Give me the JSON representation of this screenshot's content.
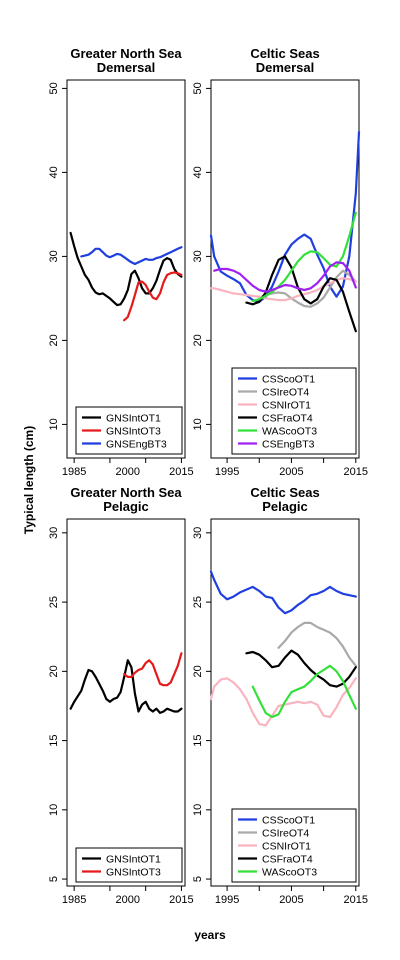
{
  "figure": {
    "ylabel": "Typical length (cm)",
    "xlabel": "years"
  },
  "chart_data": [
    {
      "type": "line",
      "title_line1": "Greater North Sea",
      "title_line2": "Demersal",
      "xlim": [
        1983,
        2016
      ],
      "ylim": [
        6,
        51
      ],
      "yticks": [
        10,
        20,
        30,
        40,
        50
      ],
      "xticks": [
        1985,
        1995,
        2005,
        2015
      ],
      "xtick_labels": [
        "1985",
        "2000",
        "2015"
      ],
      "xtick_label_values": [
        1985,
        2000,
        2015
      ],
      "legend_position": "bottom-right",
      "series": [
        {
          "name": "GNSIntOT1",
          "color": "#000000",
          "x": [
            1984,
            1985,
            1986,
            1987,
            1988,
            1989,
            1990,
            1991,
            1992,
            1993,
            1994,
            1995,
            1996,
            1997,
            1998,
            1999,
            2000,
            2001,
            2002,
            2003,
            2004,
            2005,
            2006,
            2007,
            2008,
            2009,
            2010,
            2011,
            2012,
            2013,
            2014,
            2015
          ],
          "y": [
            32.8,
            31.2,
            29.8,
            28.8,
            27.8,
            27.2,
            26.3,
            25.7,
            25.5,
            25.6,
            25.3,
            25.0,
            24.6,
            24.2,
            24.3,
            25.0,
            26.0,
            27.9,
            28.3,
            27.4,
            26.2,
            25.6,
            25.6,
            26.2,
            27.1,
            28.4,
            29.5,
            29.8,
            29.6,
            28.5,
            27.9,
            27.6
          ]
        },
        {
          "name": "GNSIntOT3",
          "color": "#e41a1c",
          "x": [
            1999,
            2000,
            2001,
            2002,
            2003,
            2004,
            2005,
            2006,
            2007,
            2008,
            2009,
            2010,
            2011,
            2012,
            2013,
            2014,
            2015
          ],
          "y": [
            22.4,
            22.8,
            24.0,
            25.4,
            26.9,
            27.0,
            26.6,
            25.8,
            25.1,
            24.9,
            25.6,
            26.9,
            27.8,
            28.0,
            28.1,
            28.0,
            27.8
          ]
        },
        {
          "name": "GNSEngBT3",
          "color": "#1f3fe0",
          "x": [
            1987,
            1988,
            1989,
            1990,
            1991,
            1992,
            1993,
            1994,
            1995,
            1996,
            1997,
            1998,
            1999,
            2000,
            2001,
            2002,
            2003,
            2004,
            2005,
            2006,
            2007,
            2008,
            2009,
            2010,
            2011,
            2012,
            2013,
            2014,
            2015
          ],
          "y": [
            30.0,
            30.1,
            30.2,
            30.5,
            30.9,
            30.9,
            30.5,
            30.1,
            29.9,
            30.1,
            30.3,
            30.2,
            29.9,
            29.6,
            29.3,
            29.1,
            29.3,
            29.5,
            29.7,
            29.6,
            29.6,
            29.8,
            29.9,
            30.1,
            30.3,
            30.5,
            30.7,
            30.9,
            31.1
          ]
        }
      ]
    },
    {
      "type": "line",
      "title_line1": "Celtic Seas",
      "title_line2": "Demersal",
      "xlim": [
        1992.5,
        2015.5
      ],
      "ylim": [
        6,
        51
      ],
      "yticks": [
        10,
        20,
        30,
        40,
        50
      ],
      "xticks": [
        1995,
        2000,
        2005,
        2010,
        2015
      ],
      "xtick_labels": [
        "1995",
        "2005",
        "2015"
      ],
      "xtick_label_values": [
        1995,
        2005,
        2015
      ],
      "legend_position": "bottom-right",
      "series": [
        {
          "name": "CSScoOT1",
          "color": "#1f3fe0",
          "x": [
            1992.5,
            1993,
            1994,
            1995,
            1996,
            1997,
            1998,
            1999,
            2000,
            2001,
            2002,
            2003,
            2004,
            2005,
            2006,
            2007,
            2008,
            2009,
            2010,
            2011,
            2012,
            2013,
            2014,
            2015,
            2015.5
          ],
          "y": [
            32.5,
            30.0,
            28.2,
            27.7,
            27.3,
            26.8,
            25.4,
            24.8,
            24.6,
            25.2,
            26.4,
            28.2,
            30.2,
            31.4,
            32.1,
            32.6,
            32.1,
            30.2,
            28.6,
            26.4,
            25.2,
            26.4,
            30.0,
            37.5,
            44.8
          ]
        },
        {
          "name": "CSIreOT4",
          "color": "#a9a9a9",
          "x": [
            2000,
            2001,
            2002,
            2003,
            2004,
            2005,
            2006,
            2007,
            2008,
            2009,
            2010,
            2011,
            2012,
            2013,
            2014,
            2015
          ],
          "y": [
            25.1,
            25.4,
            25.6,
            25.7,
            25.6,
            25.0,
            24.5,
            24.1,
            24.0,
            24.4,
            25.1,
            26.3,
            27.5,
            28.3,
            27.8,
            27.0
          ]
        },
        {
          "name": "CSNIrOT1",
          "color": "#f9b4c0",
          "x": [
            1992.5,
            1993,
            1994,
            1995,
            1996,
            1997,
            1998,
            1999,
            2000,
            2001,
            2002,
            2003,
            2004,
            2005,
            2006,
            2007,
            2008,
            2009,
            2010,
            2011,
            2012,
            2013,
            2014,
            2015
          ],
          "y": [
            26.2,
            26.2,
            26.0,
            25.8,
            25.6,
            25.5,
            25.4,
            25.3,
            25.2,
            25.0,
            24.9,
            24.8,
            24.8,
            25.0,
            25.3,
            25.5,
            25.7,
            26.0,
            26.4,
            26.8,
            27.2,
            27.4,
            27.3,
            27.0
          ]
        },
        {
          "name": "CSFraOT4",
          "color": "#000000",
          "x": [
            1998,
            1999,
            2000,
            2001,
            2002,
            2003,
            2004,
            2005,
            2006,
            2007,
            2008,
            2009,
            2010,
            2011,
            2012,
            2013,
            2014,
            2015
          ],
          "y": [
            24.5,
            24.3,
            24.6,
            25.7,
            27.8,
            29.6,
            30.0,
            28.7,
            26.3,
            24.9,
            24.4,
            24.9,
            26.4,
            27.4,
            27.2,
            25.8,
            23.4,
            21.1
          ]
        },
        {
          "name": "WAScoOT3",
          "color": "#33e03a",
          "x": [
            1999,
            2000,
            2001,
            2002,
            2003,
            2004,
            2005,
            2006,
            2007,
            2008,
            2009,
            2010,
            2011,
            2012,
            2013,
            2014,
            2015
          ],
          "y": [
            24.7,
            24.9,
            25.3,
            25.8,
            26.4,
            27.2,
            28.3,
            29.4,
            30.2,
            30.6,
            30.5,
            29.8,
            29.0,
            28.8,
            30.0,
            32.4,
            35.2
          ]
        },
        {
          "name": "CSEngBT3",
          "color": "#a020f0",
          "x": [
            1993,
            1994,
            1995,
            1996,
            1997,
            1998,
            1999,
            2000,
            2001,
            2002,
            2003,
            2004,
            2005,
            2006,
            2007,
            2008,
            2009,
            2010,
            2011,
            2012,
            2013,
            2014,
            2015
          ],
          "y": [
            28.3,
            28.5,
            28.5,
            28.3,
            27.9,
            27.2,
            26.5,
            26.0,
            25.8,
            26.0,
            26.3,
            26.6,
            26.5,
            26.2,
            26.0,
            26.2,
            26.8,
            27.7,
            28.8,
            29.3,
            29.2,
            28.3,
            26.3
          ]
        }
      ]
    },
    {
      "type": "line",
      "title_line1": "Greater North Sea",
      "title_line2": "Pelagic",
      "xlim": [
        1983,
        2016
      ],
      "ylim": [
        4.5,
        31
      ],
      "yticks": [
        5,
        10,
        15,
        20,
        25,
        30
      ],
      "xticks": [
        1985,
        1995,
        2005,
        2015
      ],
      "xtick_labels": [
        "1985",
        "2000",
        "2015"
      ],
      "xtick_label_values": [
        1985,
        2000,
        2015
      ],
      "legend_position": "bottom-right",
      "series": [
        {
          "name": "GNSIntOT1",
          "color": "#000000",
          "x": [
            1984,
            1985,
            1986,
            1987,
            1988,
            1989,
            1990,
            1991,
            1992,
            1993,
            1994,
            1995,
            1996,
            1997,
            1998,
            1999,
            2000,
            2001,
            2002,
            2003,
            2004,
            2005,
            2006,
            2007,
            2008,
            2009,
            2010,
            2011,
            2012,
            2013,
            2014,
            2015
          ],
          "y": [
            17.3,
            17.8,
            18.2,
            18.6,
            19.4,
            20.1,
            20.0,
            19.6,
            19.1,
            18.6,
            18.0,
            17.8,
            18.0,
            18.1,
            18.5,
            19.6,
            20.8,
            20.3,
            18.4,
            17.1,
            17.6,
            17.8,
            17.3,
            17.1,
            17.3,
            17.0,
            17.1,
            17.3,
            17.2,
            17.1,
            17.1,
            17.3
          ]
        },
        {
          "name": "GNSIntOT3",
          "color": "#e41a1c",
          "x": [
            1999,
            2000,
            2001,
            2002,
            2003,
            2004,
            2005,
            2006,
            2007,
            2008,
            2009,
            2010,
            2011,
            2012,
            2013,
            2014,
            2015
          ],
          "y": [
            19.8,
            19.6,
            19.6,
            19.9,
            20.1,
            20.2,
            20.6,
            20.8,
            20.5,
            19.8,
            19.1,
            19.0,
            19.0,
            19.2,
            19.8,
            20.4,
            21.3
          ]
        }
      ]
    },
    {
      "type": "line",
      "title_line1": "Celtic Seas",
      "title_line2": "Pelagic",
      "xlim": [
        1992.5,
        2015.5
      ],
      "ylim": [
        4.5,
        31
      ],
      "yticks": [
        5,
        10,
        15,
        20,
        25,
        30
      ],
      "xticks": [
        1995,
        2000,
        2005,
        2010,
        2015
      ],
      "xtick_labels": [
        "1995",
        "2005",
        "2015"
      ],
      "xtick_label_values": [
        1995,
        2005,
        2015
      ],
      "legend_position": "bottom-right",
      "series": [
        {
          "name": "CSScoOT1",
          "color": "#1f3fe0",
          "x": [
            1992.5,
            1993,
            1994,
            1995,
            1996,
            1997,
            1998,
            1999,
            2000,
            2001,
            2002,
            2003,
            2004,
            2005,
            2006,
            2007,
            2008,
            2009,
            2010,
            2011,
            2012,
            2013,
            2014,
            2015
          ],
          "y": [
            27.2,
            26.6,
            25.6,
            25.2,
            25.4,
            25.7,
            25.9,
            26.1,
            25.8,
            25.4,
            25.3,
            24.6,
            24.2,
            24.4,
            24.8,
            25.1,
            25.5,
            25.6,
            25.8,
            26.1,
            25.8,
            25.6,
            25.5,
            25.4
          ]
        },
        {
          "name": "CSIreOT4",
          "color": "#a9a9a9",
          "x": [
            2003,
            2004,
            2005,
            2006,
            2007,
            2008,
            2009,
            2010,
            2011,
            2012,
            2013,
            2014,
            2015
          ],
          "y": [
            21.7,
            22.2,
            22.8,
            23.2,
            23.5,
            23.5,
            23.2,
            23.0,
            22.8,
            22.4,
            21.8,
            21.0,
            20.4
          ]
        },
        {
          "name": "CSNIrOT1",
          "color": "#f9b4c0",
          "x": [
            1992.5,
            1993,
            1994,
            1995,
            1996,
            1997,
            1998,
            1999,
            2000,
            2001,
            2002,
            2003,
            2004,
            2005,
            2006,
            2007,
            2008,
            2009,
            2010,
            2011,
            2012,
            2013,
            2014,
            2015
          ],
          "y": [
            18.0,
            18.9,
            19.4,
            19.5,
            19.2,
            18.7,
            18.0,
            17.0,
            16.2,
            16.1,
            16.8,
            17.5,
            17.6,
            17.7,
            17.8,
            17.7,
            17.8,
            17.6,
            16.8,
            16.7,
            17.4,
            18.3,
            18.8,
            19.5
          ]
        },
        {
          "name": "CSFraOT4",
          "color": "#000000",
          "x": [
            1998,
            1999,
            2000,
            2001,
            2002,
            2003,
            2004,
            2005,
            2006,
            2007,
            2008,
            2009,
            2010,
            2011,
            2012,
            2013,
            2014,
            2015
          ],
          "y": [
            21.3,
            21.4,
            21.2,
            20.8,
            20.3,
            20.4,
            21.0,
            21.5,
            21.2,
            20.6,
            20.1,
            19.7,
            19.4,
            19.0,
            18.9,
            19.1,
            19.6,
            20.3
          ]
        },
        {
          "name": "WAScoOT3",
          "color": "#33e03a",
          "x": [
            1999,
            2000,
            2001,
            2002,
            2003,
            2004,
            2005,
            2006,
            2007,
            2008,
            2009,
            2010,
            2011,
            2012,
            2013,
            2014,
            2015
          ],
          "y": [
            18.9,
            17.9,
            17.0,
            16.7,
            16.9,
            17.8,
            18.5,
            18.7,
            18.9,
            19.3,
            19.8,
            20.1,
            20.4,
            20.0,
            19.3,
            18.3,
            17.3
          ]
        }
      ]
    }
  ]
}
